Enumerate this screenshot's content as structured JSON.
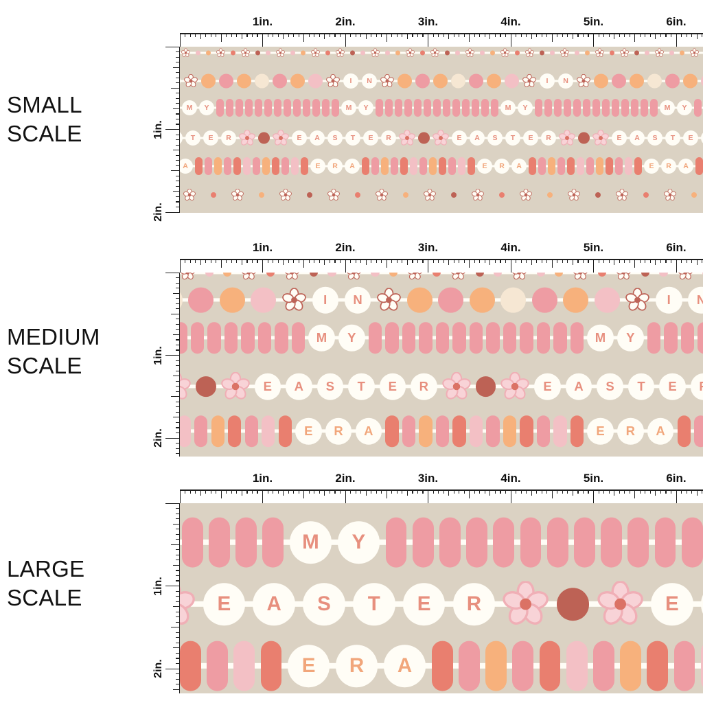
{
  "ruler": {
    "h_labels": [
      "1in.",
      "2in.",
      "3in.",
      "4in.",
      "5in.",
      "6in."
    ],
    "v_labels": [
      "1in.",
      "2in."
    ]
  },
  "colors": {
    "fabric_bg": "#DBD2C3",
    "bead_white": "#FFFDF6",
    "peach": "#F7B17C",
    "rose": "#EE9CA3",
    "coral": "#E97F6F",
    "blush": "#F3C0C5",
    "dark_rose": "#BD6255",
    "cream": "#F6E7D3",
    "letter_coral": "#E78F7E",
    "letter_peach": "#F1A67B",
    "flower_outline": "#BE6458",
    "flower_petal": "#F8D3D7",
    "flower_petal_edge": "#F0AFB6",
    "flower_center": "#DB7265",
    "ruler_ink": "#1E1E1E"
  },
  "bead_rows": {
    "tiny_strip": {
      "gap": 8,
      "string_h": 3,
      "letter_color": "#E78F7E",
      "items": [
        {
          "t": "flower",
          "style": "outline",
          "d": 13
        },
        {
          "t": "dot",
          "color": "blush",
          "d": 7
        },
        {
          "t": "dot",
          "color": "peach",
          "d": 7
        },
        {
          "t": "flower",
          "style": "outline",
          "d": 13
        },
        {
          "t": "dot",
          "color": "coral",
          "d": 7
        },
        {
          "t": "flower",
          "style": "outline",
          "d": 13
        },
        {
          "t": "dot",
          "color": "dark_rose",
          "d": 7
        },
        {
          "t": "dot",
          "color": "blush",
          "d": 7
        }
      ]
    },
    "in_row": {
      "gap": 5,
      "string_h": 3,
      "letter_color": "#E78F7E",
      "items": [
        {
          "t": "circle",
          "color": "peach",
          "d": 21
        },
        {
          "t": "circle",
          "color": "rose",
          "d": 21
        },
        {
          "t": "circle",
          "color": "peach",
          "d": 21
        },
        {
          "t": "circle",
          "color": "cream",
          "d": 21
        },
        {
          "t": "circle",
          "color": "rose",
          "d": 21
        },
        {
          "t": "circle",
          "color": "peach",
          "d": 21
        },
        {
          "t": "circle",
          "color": "blush",
          "d": 21
        },
        {
          "t": "flower",
          "style": "outline",
          "d": 20
        },
        {
          "t": "letter",
          "ch": "I",
          "d": 22
        },
        {
          "t": "letter",
          "ch": "N",
          "d": 22
        },
        {
          "t": "flower",
          "style": "outline",
          "d": 20
        }
      ]
    },
    "my_row": {
      "gap": 3,
      "string_h": 3,
      "letter_color": "#E78F7E",
      "items": [
        {
          "t": "letter",
          "ch": "M",
          "d": 22
        },
        {
          "t": "letter",
          "ch": "Y",
          "d": 22
        },
        {
          "t": "pill",
          "color": "rose",
          "w": 11,
          "h": 26,
          "repeat": 13
        }
      ]
    },
    "easter_row": {
      "gap": 4,
      "string_h": 3,
      "letter_color": "#E78F7E",
      "items": [
        {
          "t": "letter",
          "ch": "E",
          "d": 22
        },
        {
          "t": "letter",
          "ch": "A",
          "d": 22
        },
        {
          "t": "letter",
          "ch": "S",
          "d": 22
        },
        {
          "t": "letter",
          "ch": "T",
          "d": 22
        },
        {
          "t": "letter",
          "ch": "E",
          "d": 22
        },
        {
          "t": "letter",
          "ch": "R",
          "d": 22
        },
        {
          "t": "flower",
          "style": "solid",
          "d": 24
        },
        {
          "t": "dot",
          "color": "dark_rose",
          "d": 17
        },
        {
          "t": "flower",
          "style": "solid",
          "d": 24
        }
      ]
    },
    "era_row": {
      "gap": 3,
      "string_h": 3,
      "letter_color": "#F1A67B",
      "items": [
        {
          "t": "letter",
          "ch": "E",
          "d": 22
        },
        {
          "t": "letter",
          "ch": "R",
          "d": 22
        },
        {
          "t": "letter",
          "ch": "A",
          "d": 22
        },
        {
          "t": "pill",
          "color": "coral",
          "w": 11,
          "h": 26
        },
        {
          "t": "pill",
          "color": "rose",
          "w": 11,
          "h": 26
        },
        {
          "t": "pill",
          "color": "peach",
          "w": 11,
          "h": 26
        },
        {
          "t": "pill",
          "color": "rose",
          "w": 11,
          "h": 26
        },
        {
          "t": "pill",
          "color": "coral",
          "w": 11,
          "h": 26
        },
        {
          "t": "pill",
          "color": "blush",
          "w": 11,
          "h": 26
        },
        {
          "t": "pill",
          "color": "rose",
          "w": 11,
          "h": 26
        },
        {
          "t": "pill",
          "color": "peach",
          "w": 11,
          "h": 26
        },
        {
          "t": "pill",
          "color": "coral",
          "w": 11,
          "h": 26
        },
        {
          "t": "pill",
          "color": "rose",
          "w": 11,
          "h": 26
        },
        {
          "t": "pill",
          "color": "blush",
          "w": 11,
          "h": 26
        },
        {
          "t": "pill",
          "color": "coral",
          "w": 11,
          "h": 26
        }
      ]
    },
    "flowers_row": {
      "gap": 22,
      "string_h": 0,
      "letter_color": "#E78F7E",
      "items": [
        {
          "t": "flower",
          "style": "outline",
          "d": 18
        },
        {
          "t": "dot",
          "color": "coral",
          "d": 8
        },
        {
          "t": "flower",
          "style": "outline",
          "d": 18
        },
        {
          "t": "dot",
          "color": "peach",
          "d": 8
        },
        {
          "t": "flower",
          "style": "outline",
          "d": 18
        },
        {
          "t": "dot",
          "color": "dark_rose",
          "d": 8
        }
      ]
    }
  },
  "panels": [
    {
      "name": "small",
      "label_lines": [
        "SMALL",
        "SCALE"
      ],
      "scale": 1,
      "rows": [
        "tiny_strip",
        "in_row",
        "my_row",
        "easter_row",
        "era_row",
        "flowers_row"
      ]
    },
    {
      "name": "medium",
      "label_lines": [
        "MEDIUM",
        "SCALE"
      ],
      "scale": 1.75,
      "rows": [
        "tiny_strip",
        "in_row",
        "my_row",
        "easter_row",
        "era_row"
      ]
    },
    {
      "name": "large",
      "label_lines": [
        "LARGE",
        "SCALE"
      ],
      "scale": 2.8,
      "rows": [
        "my_row",
        "easter_row",
        "era_row"
      ]
    }
  ]
}
